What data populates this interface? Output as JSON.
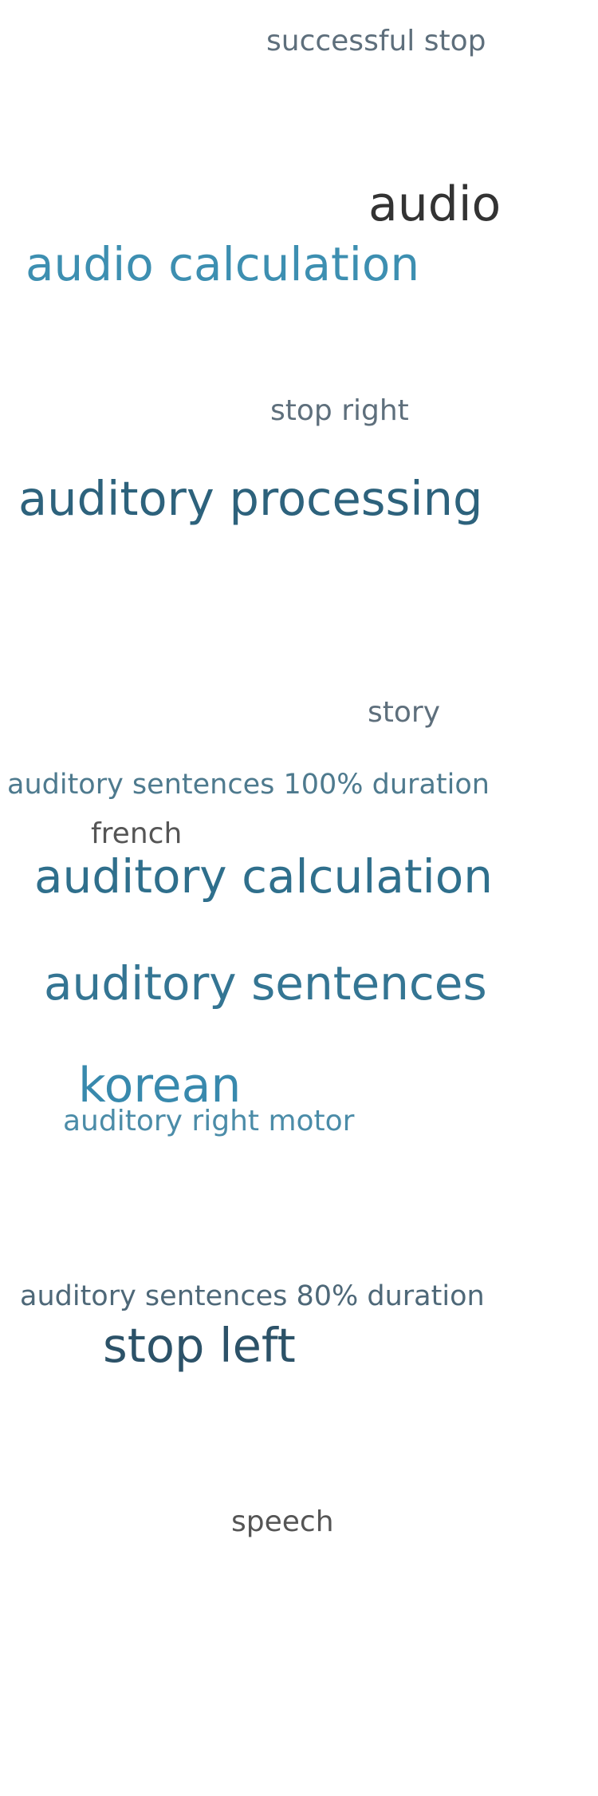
{
  "words": [
    {
      "id": "successful-stop",
      "text": "successful stop",
      "color": "#5e6f7c"
    },
    {
      "id": "audio",
      "text": "audio",
      "color": "#333333"
    },
    {
      "id": "audio-calculation",
      "text": "audio calculation",
      "color": "#3d8fb1"
    },
    {
      "id": "stop-right",
      "text": "stop right",
      "color": "#5e6f7c"
    },
    {
      "id": "auditory-processing",
      "text": "auditory processing",
      "color": "#2d627c"
    },
    {
      "id": "story",
      "text": "story",
      "color": "#5e6f7c"
    },
    {
      "id": "auditory-sentences-100",
      "text": "auditory sentences 100% duration",
      "color": "#4e7a8e"
    },
    {
      "id": "french",
      "text": "french",
      "color": "#555555"
    },
    {
      "id": "auditory-calculation",
      "text": "auditory calculation",
      "color": "#2f6f8c"
    },
    {
      "id": "auditory-sentences",
      "text": "auditory sentences",
      "color": "#347593"
    },
    {
      "id": "korean",
      "text": "korean",
      "color": "#3889ad"
    },
    {
      "id": "auditory-right-motor",
      "text": "auditory right motor",
      "color": "#4b8ca8"
    },
    {
      "id": "auditory-sentences-80",
      "text": "auditory sentences 80% duration",
      "color": "#4e6878"
    },
    {
      "id": "stop-left",
      "text": "stop left",
      "color": "#2c5268"
    },
    {
      "id": "speech",
      "text": "speech",
      "color": "#555555"
    }
  ]
}
